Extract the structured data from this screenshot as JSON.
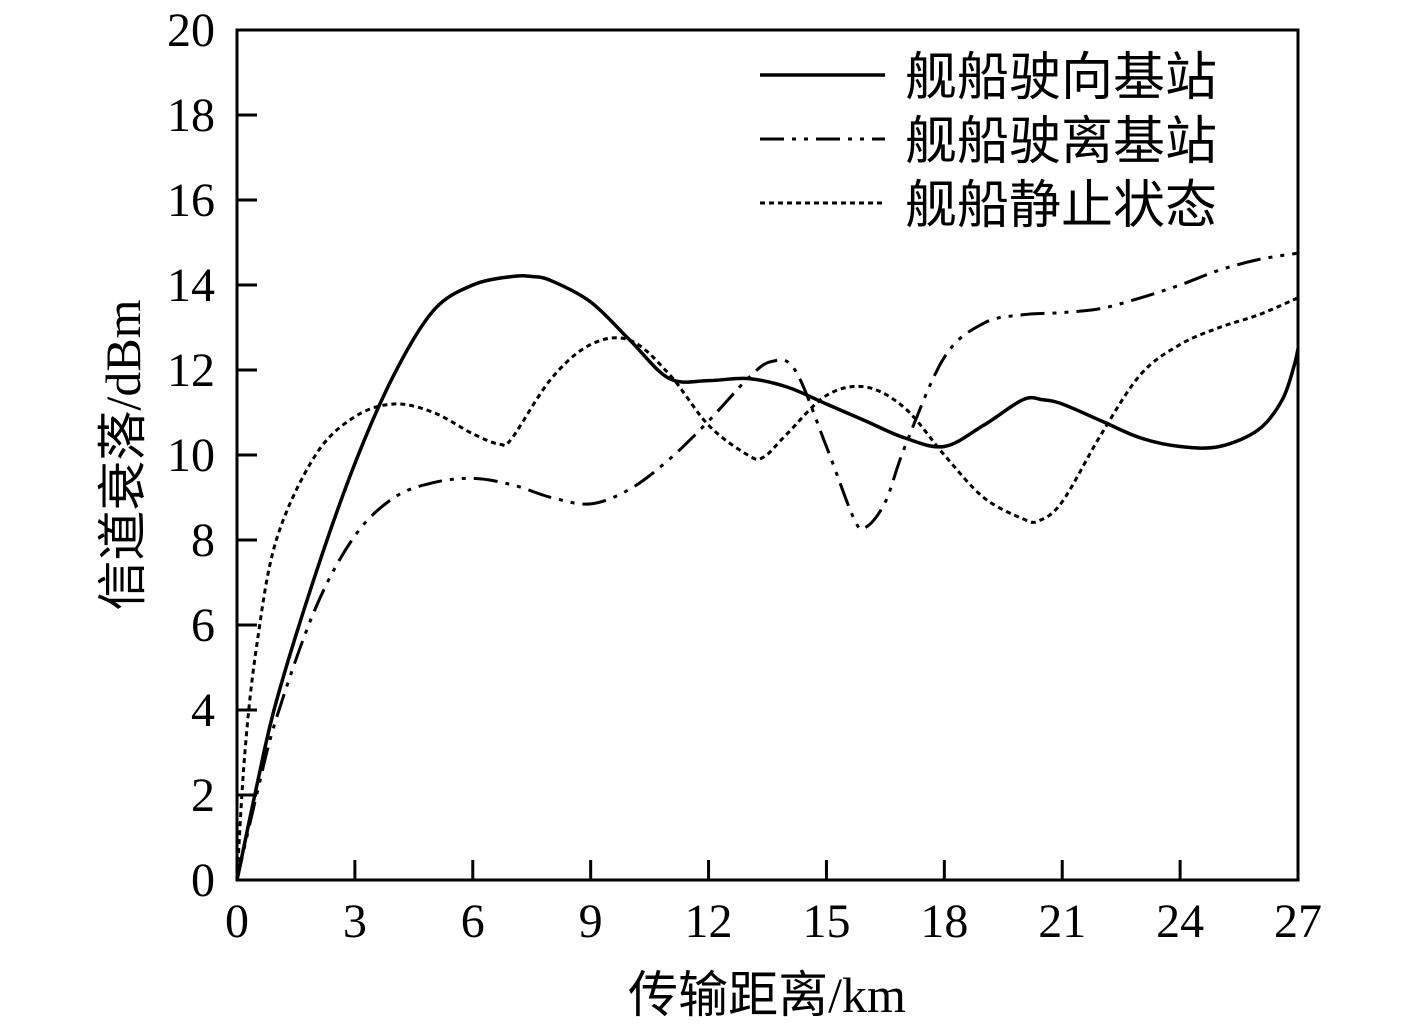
{
  "chart_data": {
    "type": "line",
    "title": "",
    "xlabel": "传输距离/km",
    "ylabel": "信道衰落/dBm",
    "xlim": [
      0,
      27
    ],
    "ylim": [
      0,
      20
    ],
    "xticks": [
      0,
      3,
      6,
      9,
      12,
      15,
      18,
      21,
      24,
      27
    ],
    "yticks": [
      0,
      2,
      4,
      6,
      8,
      10,
      12,
      14,
      16,
      18,
      20
    ],
    "xtick_labels": [
      "0",
      "3",
      "6",
      "9",
      "12",
      "15",
      "18",
      "21",
      "24",
      "27"
    ],
    "ytick_labels": [
      "0",
      "2",
      "4",
      "6",
      "8",
      "10",
      "12",
      "14",
      "16",
      "18",
      "20"
    ],
    "grid": false,
    "legend_position": "top-right",
    "series": [
      {
        "name": "舰船驶向基站",
        "style": "solid",
        "color": "#000000",
        "x": [
          0,
          0.5,
          1,
          2,
          3,
          4,
          5,
          6,
          7,
          7.5,
          8,
          9,
          10,
          11,
          12,
          13,
          14,
          15,
          16,
          17,
          18,
          19,
          20,
          20.5,
          21,
          22,
          23,
          24,
          25,
          26,
          26.6,
          26.9,
          27
        ],
        "y": [
          0,
          2.2,
          4.2,
          7.2,
          9.8,
          11.9,
          13.4,
          14.0,
          14.2,
          14.2,
          14.1,
          13.6,
          12.7,
          11.8,
          11.75,
          11.8,
          11.6,
          11.2,
          10.8,
          10.4,
          10.2,
          10.7,
          11.3,
          11.3,
          11.2,
          10.8,
          10.4,
          10.2,
          10.2,
          10.6,
          11.3,
          12.1,
          12.5
        ]
      },
      {
        "name": "舰船驶离基站",
        "style": "dash-dot-dot",
        "color": "#000000",
        "x": [
          0,
          0.5,
          1,
          2,
          3,
          4,
          5,
          6,
          7,
          8,
          9,
          10,
          11,
          12,
          13,
          13.6,
          14.2,
          15,
          15.7,
          16,
          16.5,
          17,
          18,
          19,
          20,
          21,
          22,
          23,
          24,
          25,
          26,
          27
        ],
        "y": [
          0,
          2.0,
          3.8,
          6.4,
          8.1,
          9.0,
          9.35,
          9.45,
          9.3,
          9.0,
          8.85,
          9.2,
          9.9,
          10.8,
          11.8,
          12.2,
          12.0,
          10.2,
          8.5,
          8.3,
          8.9,
          10.2,
          12.3,
          13.1,
          13.3,
          13.35,
          13.45,
          13.7,
          14.0,
          14.35,
          14.6,
          14.75
        ]
      },
      {
        "name": "舰船静止状态",
        "style": "dotted",
        "color": "#000000",
        "x": [
          0,
          0.2,
          0.5,
          1,
          2,
          3,
          4,
          5,
          6,
          6.7,
          7,
          8,
          9,
          10,
          11,
          12,
          13,
          13.4,
          14,
          15,
          16,
          17,
          18,
          19,
          20,
          20.4,
          21,
          22,
          23,
          24,
          25,
          26,
          27
        ],
        "y": [
          0,
          3.0,
          5.5,
          8.0,
          10.0,
          10.9,
          11.2,
          11.0,
          10.5,
          10.25,
          10.4,
          11.8,
          12.6,
          12.7,
          11.9,
          10.7,
          10.0,
          9.95,
          10.5,
          11.4,
          11.6,
          11.1,
          10.0,
          9.0,
          8.5,
          8.45,
          8.9,
          10.5,
          11.9,
          12.6,
          13.0,
          13.3,
          13.7
        ]
      }
    ]
  }
}
